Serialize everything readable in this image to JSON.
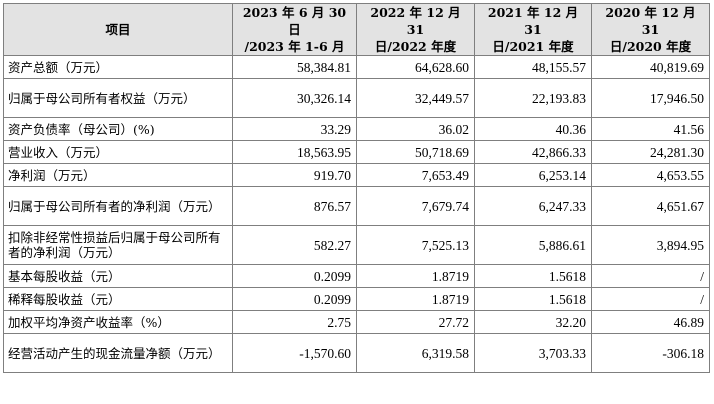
{
  "table": {
    "header": {
      "item": "项目",
      "col1_line1": "2023 年 6 月 30 日",
      "col1_line2": "/2023 年 1-6 月",
      "col2_line1": "2022 年 12 月 31",
      "col2_line2": "日/2022 年度",
      "col3_line1": "2021 年 12 月 31",
      "col3_line2": "日/2021 年度",
      "col4_line1": "2020 年 12 月 31",
      "col4_line2": "日/2020 年度"
    },
    "rows": [
      {
        "label": "资产总额（万元）",
        "values": [
          "58,384.81",
          "64,628.60",
          "48,155.57",
          "40,819.69"
        ]
      },
      {
        "label": "归属于母公司所有者权益（万元）",
        "values": [
          "30,326.14",
          "32,449.57",
          "22,193.83",
          "17,946.50"
        ]
      },
      {
        "label": "资产负债率（母公司）(%)",
        "values": [
          "33.29",
          "36.02",
          "40.36",
          "41.56"
        ]
      },
      {
        "label": "营业收入（万元）",
        "values": [
          "18,563.95",
          "50,718.69",
          "42,866.33",
          "24,281.30"
        ]
      },
      {
        "label": "净利润（万元）",
        "values": [
          "919.70",
          "7,653.49",
          "6,253.14",
          "4,653.55"
        ]
      },
      {
        "label": "归属于母公司所有者的净利润（万元）",
        "values": [
          "876.57",
          "7,679.74",
          "6,247.33",
          "4,651.67"
        ]
      },
      {
        "label": "扣除非经常性损益后归属于母公司所有者的净利润（万元）",
        "values": [
          "582.27",
          "7,525.13",
          "5,886.61",
          "3,894.95"
        ]
      },
      {
        "label": "基本每股收益（元）",
        "values": [
          "0.2099",
          "1.8719",
          "1.5618",
          "/"
        ]
      },
      {
        "label": "稀释每股收益（元）",
        "values": [
          "0.2099",
          "1.8719",
          "1.5618",
          "/"
        ]
      },
      {
        "label": "加权平均净资产收益率（%）",
        "values": [
          "2.75",
          "27.72",
          "32.20",
          "46.89"
        ]
      },
      {
        "label": "经营活动产生的现金流量净额（万元）",
        "values": [
          "-1,570.60",
          "6,319.58",
          "3,703.33",
          "-306.18"
        ]
      }
    ]
  }
}
